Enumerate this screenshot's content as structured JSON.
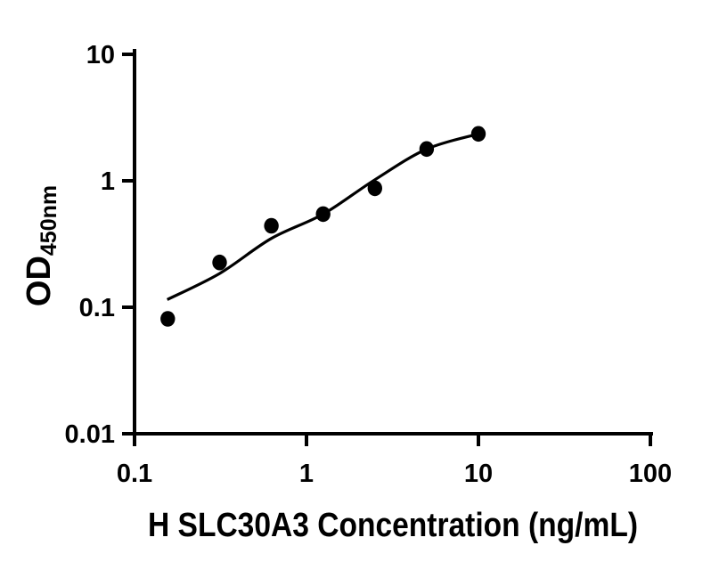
{
  "figure": {
    "background": "#ffffff",
    "description": "ELISA standard curve, log-log scatter plot with fitted curve"
  },
  "colors": {
    "axis": "#000000",
    "marker": "#000000",
    "curve": "#000000",
    "background": "#ffffff"
  },
  "chart_data": {
    "type": "scatter",
    "title": "",
    "xlabel": "H SLC30A3 Concentration (ng/mL)",
    "ylabel": "OD450nm",
    "ylabel_main": "OD",
    "ylabel_sub": "450nm",
    "x_scale": "log",
    "y_scale": "log",
    "xlim": [
      0.1,
      100
    ],
    "ylim": [
      0.01,
      10
    ],
    "grid": false,
    "legend": false,
    "x_ticks": [
      {
        "v": 0.1,
        "label": "0.1"
      },
      {
        "v": 1,
        "label": "1"
      },
      {
        "v": 10,
        "label": "10"
      },
      {
        "v": 100,
        "label": "100"
      }
    ],
    "y_ticks": [
      {
        "v": 10,
        "label": "10"
      },
      {
        "v": 1,
        "label": "1"
      },
      {
        "v": 0.1,
        "label": "0.1"
      },
      {
        "v": 0.01,
        "label": "0.01"
      }
    ],
    "series": [
      {
        "name": "H SLC30A3 standard",
        "marker": "filled-circle",
        "color": "#000000",
        "points": [
          [
            0.156,
            0.081
          ],
          [
            0.3125,
            0.226
          ],
          [
            0.625,
            0.441
          ],
          [
            1.25,
            0.545
          ],
          [
            2.5,
            0.873
          ],
          [
            5,
            1.785
          ],
          [
            10,
            2.35
          ]
        ]
      }
    ],
    "fit_curve": {
      "name": "fitted standard curve",
      "color": "#000000",
      "points": [
        [
          0.155,
          0.115
        ],
        [
          0.3125,
          0.185
        ],
        [
          0.625,
          0.35
        ],
        [
          1.25,
          0.545
        ],
        [
          2.5,
          1.02
        ],
        [
          5,
          1.78
        ],
        [
          10,
          2.35
        ]
      ]
    }
  }
}
